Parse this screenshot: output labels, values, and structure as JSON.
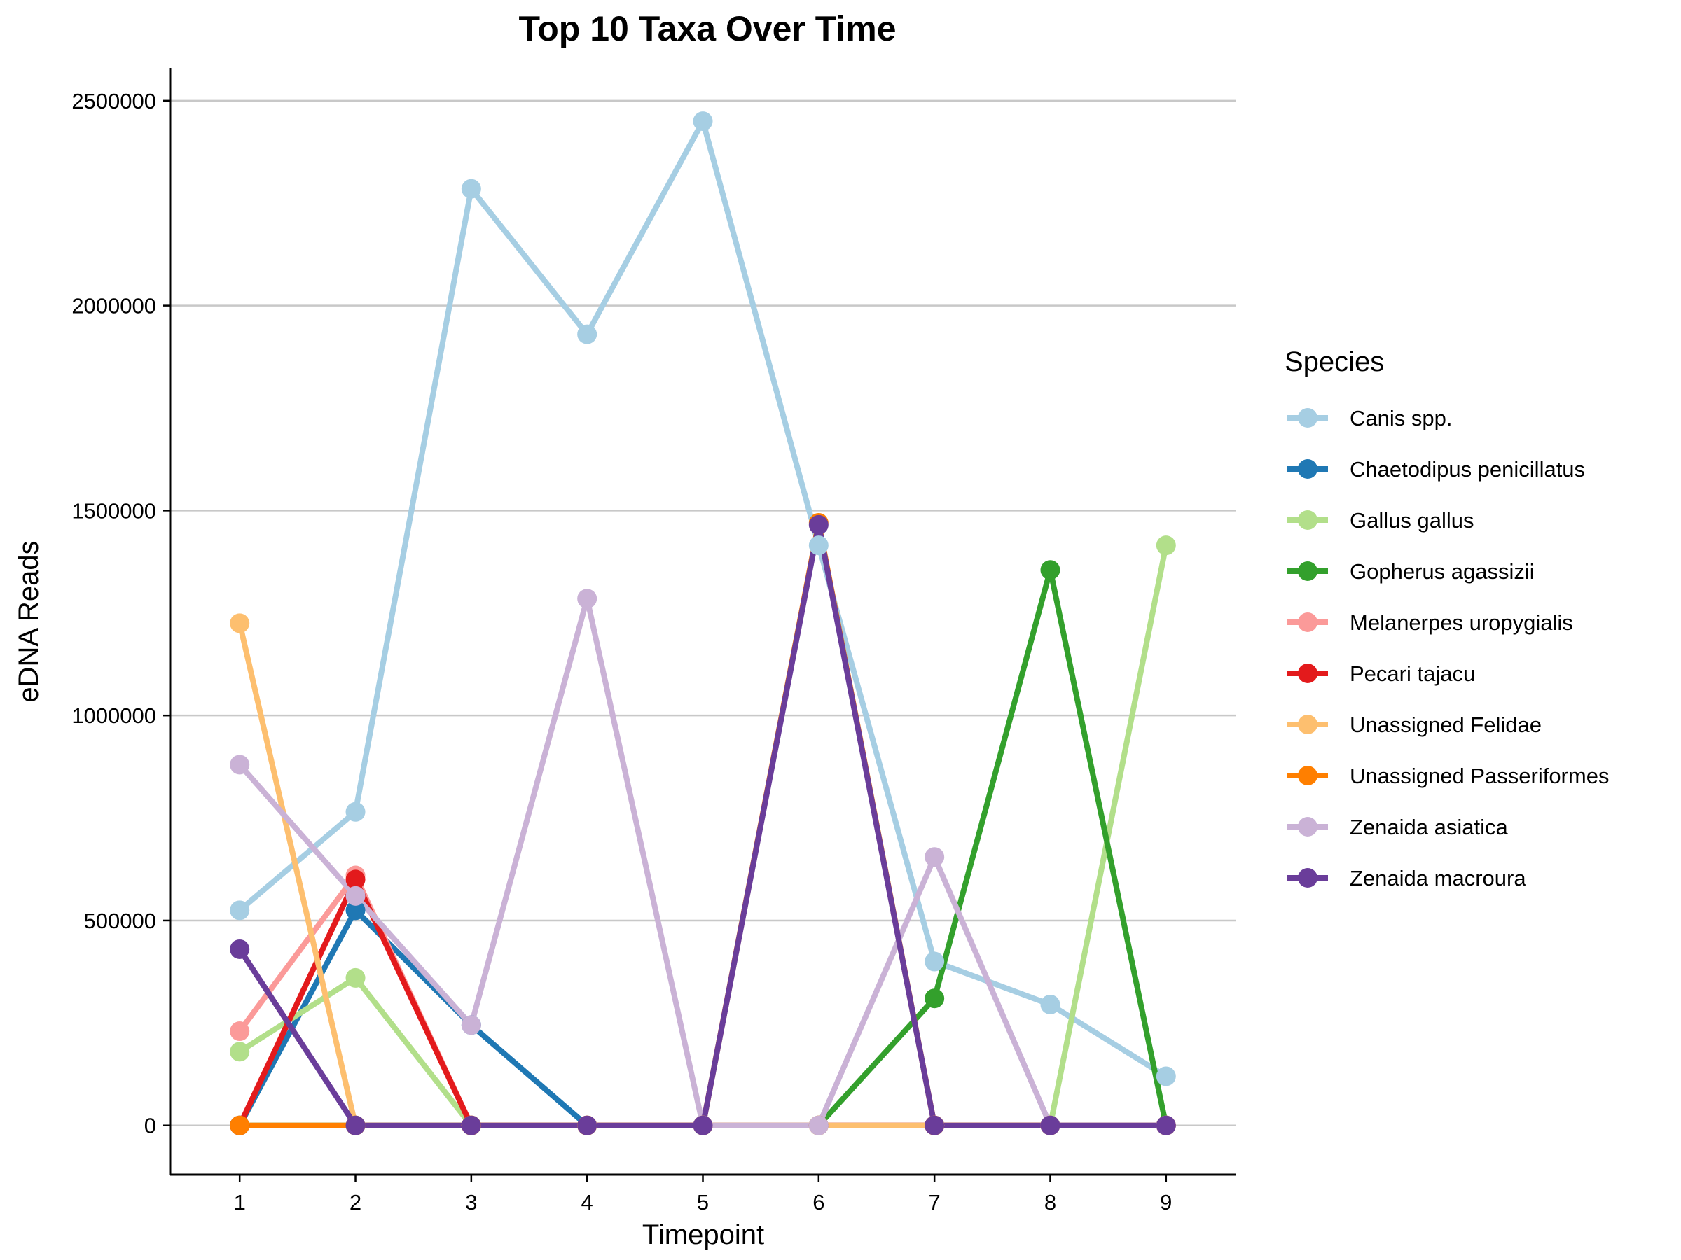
{
  "chart_data": {
    "type": "line",
    "title": "Top 10 Taxa Over Time",
    "xlabel": "Timepoint",
    "ylabel": "eDNA Reads",
    "x": [
      1,
      2,
      3,
      4,
      5,
      6,
      7,
      8,
      9
    ],
    "x_tick_labels": [
      "1",
      "2",
      "3",
      "4",
      "5",
      "6",
      "7",
      "8",
      "9"
    ],
    "xlim": [
      0.4,
      9.6
    ],
    "ylim": [
      -120000,
      2580000
    ],
    "y_ticks": [
      0,
      500000,
      1000000,
      1500000,
      2000000,
      2500000
    ],
    "y_tick_labels": [
      "0",
      "500000",
      "1000000",
      "1500000",
      "2000000",
      "2500000"
    ],
    "grid": "horizontal",
    "legend": {
      "title": "Species",
      "placement": "right"
    },
    "series": [
      {
        "name": "Canis spp.",
        "color": "#a6cee3",
        "values": [
          525000,
          765000,
          2285000,
          1930000,
          2450000,
          1415000,
          400000,
          295000,
          120000
        ]
      },
      {
        "name": "Chaetodipus penicillatus",
        "color": "#1f78b4",
        "values": [
          0,
          525000,
          245000,
          0,
          0,
          0,
          0,
          0,
          0
        ]
      },
      {
        "name": "Gallus gallus",
        "color": "#b2df8a",
        "values": [
          180000,
          360000,
          0,
          0,
          0,
          0,
          0,
          0,
          1415000
        ]
      },
      {
        "name": "Gopherus agassizii",
        "color": "#33a02c",
        "values": [
          0,
          0,
          0,
          0,
          0,
          0,
          310000,
          1355000,
          0
        ]
      },
      {
        "name": "Melanerpes uropygialis",
        "color": "#fb9a99",
        "values": [
          230000,
          610000,
          0,
          0,
          0,
          0,
          0,
          0,
          0
        ]
      },
      {
        "name": "Pecari tajacu",
        "color": "#e31a1c",
        "values": [
          0,
          600000,
          0,
          0,
          0,
          0,
          0,
          0,
          0
        ]
      },
      {
        "name": "Unassigned Felidae",
        "color": "#fdbf6f",
        "values": [
          1225000,
          0,
          0,
          0,
          0,
          0,
          0,
          0,
          0
        ]
      },
      {
        "name": "Unassigned Passeriformes",
        "color": "#ff7f00",
        "values": [
          0,
          0,
          0,
          0,
          0,
          1470000,
          0,
          0,
          0
        ]
      },
      {
        "name": "Zenaida asiatica",
        "color": "#cab2d6",
        "values": [
          880000,
          560000,
          245000,
          1285000,
          0,
          0,
          655000,
          0,
          0
        ]
      },
      {
        "name": "Zenaida macroura",
        "color": "#6a3d9a",
        "values": [
          430000,
          0,
          0,
          0,
          0,
          1465000,
          0,
          0,
          0
        ]
      }
    ]
  }
}
